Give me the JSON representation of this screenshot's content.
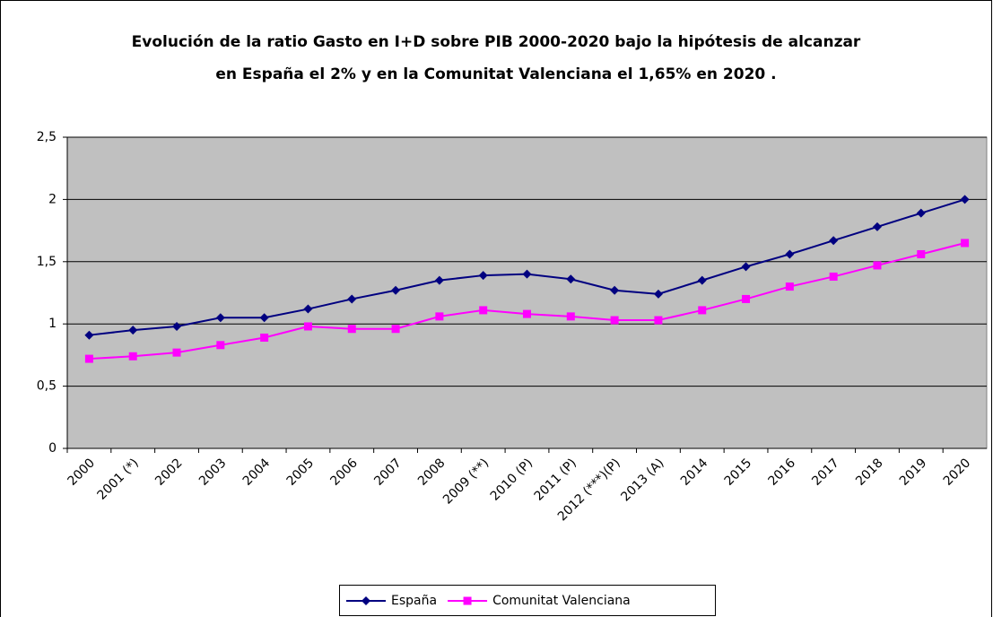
{
  "chart_data": {
    "type": "line",
    "title": [
      "Evolución de la ratio Gasto en I+D sobre PIB 2000-2020 bajo la hipótesis de alcanzar",
      "en España el 2% y en la Comunitat Valenciana el 1,65% en 2020 ."
    ],
    "categories": [
      "2000",
      "2001 (*)",
      "2002",
      "2003",
      "2004",
      "2005",
      "2006",
      "2007",
      "2008",
      "2009 (**)",
      "2010 (P)",
      "2011 (P)",
      "2012 (***)(P)",
      "2013 (A)",
      "2014",
      "2015",
      "2016",
      "2017",
      "2018",
      "2019",
      "2020"
    ],
    "series": [
      {
        "name": "España",
        "color": "#000080",
        "values": [
          0.91,
          0.95,
          0.98,
          1.05,
          1.05,
          1.12,
          1.2,
          1.27,
          1.35,
          1.39,
          1.4,
          1.36,
          1.27,
          1.24,
          1.35,
          1.46,
          1.56,
          1.67,
          1.78,
          1.89,
          2.0
        ]
      },
      {
        "name": "Comunitat Valenciana",
        "color": "#ff00ff",
        "values": [
          0.72,
          0.74,
          0.77,
          0.83,
          0.89,
          0.98,
          0.96,
          0.96,
          1.06,
          1.11,
          1.08,
          1.06,
          1.03,
          1.03,
          1.11,
          1.2,
          1.3,
          1.38,
          1.47,
          1.56,
          1.65
        ]
      }
    ],
    "ylim": [
      0,
      2.5
    ],
    "yticks": [
      0,
      {
        "value": 0.5,
        "label": "0,5"
      },
      1,
      {
        "value": 1.5,
        "label": "1,5"
      },
      2,
      {
        "value": 2.5,
        "label": "2,5"
      }
    ],
    "grid": true,
    "plot_background": "#c0c0c0",
    "legend": "bottom"
  }
}
